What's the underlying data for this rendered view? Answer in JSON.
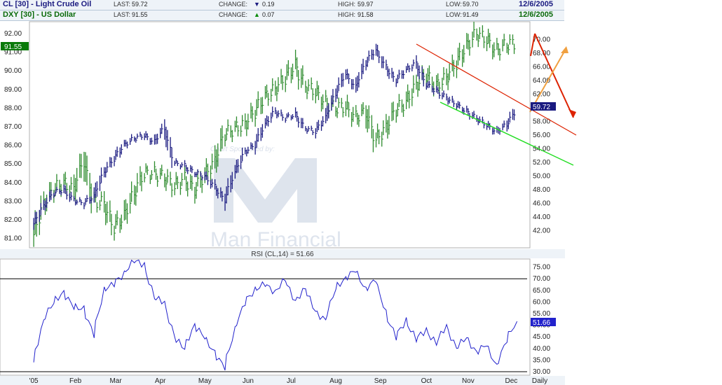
{
  "header": {
    "row1": {
      "symbol": "CL [30] - Light Crude Oil",
      "last_label": "LAST:",
      "last": "59.72",
      "change_label": "CHANGE:",
      "change_arrow": "▼",
      "change": "0.19",
      "high_label": "HIGH:",
      "high": "59.97",
      "low_label": "LOW:",
      "low": "59.70",
      "date": "12/6/2005"
    },
    "row2": {
      "symbol": "DXY [30] - US Dollar",
      "last_label": "LAST:",
      "last": "91.55",
      "change_label": "CHANGE:",
      "change_arrow": "▲",
      "change": "0.07",
      "high_label": "HIGH:",
      "high": "91.58",
      "low_label": "LOW:",
      "low": "91.49",
      "date": "12/6/2005"
    }
  },
  "watermark": {
    "sponsor": "Chart Sponsored by:",
    "brand": "Man Financial"
  },
  "colors": {
    "cl": "#1a1a80",
    "dxy": "#2e8b2e",
    "rsi": "#2222cc",
    "trend_red": "#dd2200",
    "trend_green": "#22dd22",
    "arrow_orange": "#f0a040",
    "overbought_line": "#000000"
  },
  "chart_data": [
    {
      "type": "line",
      "title": "",
      "x_tick_labels": [
        "'05",
        "Feb",
        "Mar",
        "Apr",
        "May",
        "Jun",
        "Jul",
        "Aug",
        "Sep",
        "Oct",
        "Nov",
        "Dec",
        "Daily"
      ],
      "left_axis": {
        "series": "DXY [30] - US Dollar",
        "ylim": [
          80.5,
          92.6
        ],
        "ticks": [
          "81.00",
          "82.00",
          "83.00",
          "84.00",
          "85.00",
          "86.00",
          "87.00",
          "88.00",
          "89.00",
          "90.00",
          "91.00",
          "92.00"
        ],
        "last_marker": "91.55"
      },
      "right_axis": {
        "series": "CL [30] - Light Crude Oil",
        "ylim": [
          39.5,
          72.5
        ],
        "ticks": [
          "42.00",
          "44.00",
          "46.00",
          "48.00",
          "50.00",
          "52.00",
          "54.00",
          "56.00",
          "58.00",
          "60.00",
          "62.00",
          "64.00",
          "66.00",
          "68.00",
          "70.00"
        ],
        "last_marker": "59.72"
      },
      "series": [
        {
          "name": "DXY [30] - US Dollar",
          "axis": "left",
          "x": [
            "2005-01-03",
            "2005-01-10",
            "2005-01-17",
            "2005-01-24",
            "2005-01-31",
            "2005-02-07",
            "2005-02-14",
            "2005-02-21",
            "2005-02-28",
            "2005-03-07",
            "2005-03-14",
            "2005-03-21",
            "2005-03-28",
            "2005-04-04",
            "2005-04-11",
            "2005-04-18",
            "2005-04-25",
            "2005-05-02",
            "2005-05-09",
            "2005-05-16",
            "2005-05-23",
            "2005-05-30",
            "2005-06-06",
            "2005-06-13",
            "2005-06-20",
            "2005-06-27",
            "2005-07-04",
            "2005-07-11",
            "2005-07-18",
            "2005-07-25",
            "2005-08-01",
            "2005-08-08",
            "2005-08-15",
            "2005-08-22",
            "2005-08-29",
            "2005-09-05",
            "2005-09-12",
            "2005-09-19",
            "2005-09-26",
            "2005-10-03",
            "2005-10-10",
            "2005-10-17",
            "2005-10-24",
            "2005-10-31",
            "2005-11-07",
            "2005-11-14",
            "2005-11-21",
            "2005-11-28",
            "2005-12-05"
          ],
          "values": [
            81.2,
            82.8,
            83.6,
            84.0,
            83.6,
            85.2,
            83.0,
            82.9,
            81.6,
            82.2,
            83.4,
            84.5,
            84.5,
            84.3,
            83.8,
            84.2,
            83.6,
            84.4,
            85.1,
            86.6,
            86.9,
            87.1,
            87.8,
            88.6,
            89.0,
            89.6,
            90.3,
            89.2,
            88.9,
            88.3,
            88.0,
            88.1,
            87.5,
            87.8,
            86.3,
            86.9,
            87.9,
            88.3,
            89.2,
            89.8,
            89.2,
            89.6,
            90.4,
            91.3,
            92.0,
            91.7,
            91.1,
            91.4,
            91.5
          ]
        },
        {
          "name": "CL [30] - Light Crude Oil",
          "axis": "right",
          "x": [
            "2005-01-03",
            "2005-01-10",
            "2005-01-17",
            "2005-01-24",
            "2005-01-31",
            "2005-02-07",
            "2005-02-14",
            "2005-02-21",
            "2005-02-28",
            "2005-03-07",
            "2005-03-14",
            "2005-03-21",
            "2005-03-28",
            "2005-04-04",
            "2005-04-11",
            "2005-04-18",
            "2005-04-25",
            "2005-05-02",
            "2005-05-09",
            "2005-05-16",
            "2005-05-23",
            "2005-05-30",
            "2005-06-06",
            "2005-06-13",
            "2005-06-20",
            "2005-06-27",
            "2005-07-04",
            "2005-07-11",
            "2005-07-18",
            "2005-07-25",
            "2005-08-01",
            "2005-08-08",
            "2005-08-15",
            "2005-08-22",
            "2005-08-29",
            "2005-09-05",
            "2005-09-12",
            "2005-09-19",
            "2005-09-26",
            "2005-10-03",
            "2005-10-10",
            "2005-10-17",
            "2005-10-24",
            "2005-10-31",
            "2005-11-07",
            "2005-11-14",
            "2005-11-21",
            "2005-11-28",
            "2005-12-05"
          ],
          "values": [
            43.0,
            45.5,
            47.5,
            48.0,
            46.5,
            46.0,
            47.0,
            50.5,
            52.5,
            54.5,
            55.5,
            56.0,
            55.0,
            57.0,
            52.0,
            51.5,
            50.5,
            50.0,
            48.5,
            46.5,
            50.5,
            53.5,
            54.5,
            57.5,
            59.5,
            58.5,
            59.0,
            57.0,
            56.5,
            58.5,
            62.0,
            65.0,
            63.0,
            66.5,
            68.5,
            66.0,
            64.0,
            65.5,
            66.5,
            63.5,
            62.5,
            61.5,
            60.5,
            59.5,
            58.5,
            57.5,
            56.5,
            57.5,
            59.7
          ]
        }
      ]
    },
    {
      "type": "line",
      "title": "RSI (CL,14) = 51.66",
      "ylim": [
        28.5,
        78.5
      ],
      "ticks": [
        "30.00",
        "35.00",
        "40.00",
        "45.00",
        "50.00",
        "55.00",
        "60.00",
        "65.00",
        "70.00",
        "75.00"
      ],
      "reference_lines": [
        70,
        30
      ],
      "last_marker": "51.66",
      "series": [
        {
          "name": "RSI (CL,14)",
          "x": [
            "2005-01-03",
            "2005-01-10",
            "2005-01-17",
            "2005-01-24",
            "2005-01-31",
            "2005-02-07",
            "2005-02-14",
            "2005-02-21",
            "2005-02-28",
            "2005-03-07",
            "2005-03-14",
            "2005-03-21",
            "2005-03-28",
            "2005-04-04",
            "2005-04-11",
            "2005-04-18",
            "2005-04-25",
            "2005-05-02",
            "2005-05-09",
            "2005-05-16",
            "2005-05-23",
            "2005-05-30",
            "2005-06-06",
            "2005-06-13",
            "2005-06-20",
            "2005-06-27",
            "2005-07-04",
            "2005-07-11",
            "2005-07-18",
            "2005-07-25",
            "2005-08-01",
            "2005-08-08",
            "2005-08-15",
            "2005-08-22",
            "2005-08-29",
            "2005-09-05",
            "2005-09-12",
            "2005-09-19",
            "2005-09-26",
            "2005-10-03",
            "2005-10-10",
            "2005-10-17",
            "2005-10-24",
            "2005-10-31",
            "2005-11-07",
            "2005-11-14",
            "2005-11-21",
            "2005-11-28",
            "2005-12-05"
          ],
          "values": [
            34,
            52,
            60,
            64,
            58,
            57,
            46,
            65,
            68,
            72,
            78,
            76,
            62,
            60,
            45,
            40,
            50,
            45,
            38,
            32,
            48,
            60,
            65,
            68,
            64,
            70,
            60,
            66,
            56,
            52,
            66,
            70,
            74,
            65,
            70,
            55,
            45,
            52,
            44,
            48,
            42,
            50,
            40,
            45,
            38,
            42,
            32,
            44,
            51.66
          ]
        }
      ]
    }
  ]
}
